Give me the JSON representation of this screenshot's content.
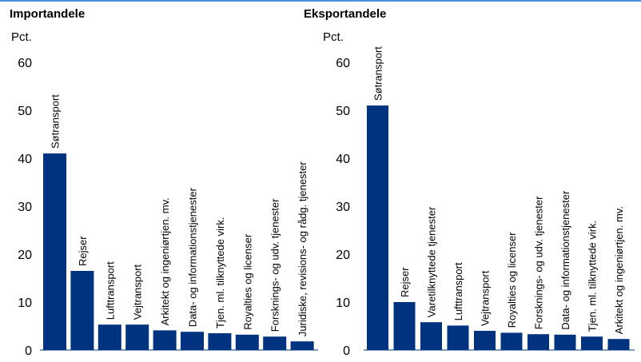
{
  "chart_data": [
    {
      "type": "bar",
      "title": "Importandele",
      "ylabel": "Pct.",
      "ylim": [
        0,
        60
      ],
      "yticks": [
        0,
        10,
        20,
        30,
        40,
        50,
        60
      ],
      "grid": false,
      "bar_color": "#00337f",
      "categories": [
        "Søtransport",
        "Rejser",
        "Lufttransport",
        "Vejtransport",
        "Arkitekt og ingeniørtjen. mv.",
        "Data- og informationstjenester",
        "Tjen. ml. tilknyttede virk.",
        "Royalties og licenser",
        "Forsknings- og udv. tjenester",
        "Juridiske, revisions- og rådg. tjenester"
      ],
      "values": [
        41,
        16.5,
        5.3,
        5.3,
        4.1,
        3.8,
        3.5,
        3.2,
        2.8,
        1.8
      ]
    },
    {
      "type": "bar",
      "title": "Eksportandele",
      "ylabel": "Pct.",
      "ylim": [
        0,
        60
      ],
      "yticks": [
        0,
        10,
        20,
        30,
        40,
        50,
        60
      ],
      "grid": false,
      "bar_color": "#00337f",
      "categories": [
        "Søtransport",
        "Rejser",
        "Varetilknyttede tjenester",
        "Lufttransport",
        "Vejtransport",
        "Royalties og licenser",
        "Forsknings- og udv. tjenester",
        "Data- og informationstjenester",
        "Tjen. ml. tilknyttede virk.",
        "Arkitekt og ingeniørtjen. mv."
      ],
      "values": [
        51,
        10,
        5.8,
        5.1,
        4,
        3.6,
        3.3,
        3.2,
        2.8,
        2.3
      ]
    }
  ]
}
